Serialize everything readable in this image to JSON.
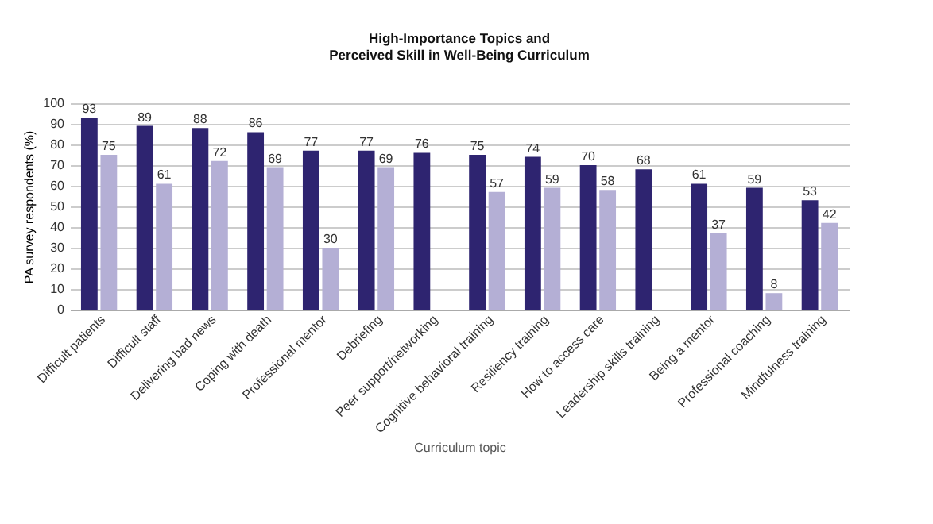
{
  "chart_data": {
    "type": "bar",
    "title": "High-Importance Topics and\nPerceived Skill in Well-Being Curriculum",
    "xlabel": "Curriculum topic",
    "ylabel": "PA survey respondents (%)",
    "categories": [
      "Difficult patients",
      "Difficult staff",
      "Delivering bad news",
      "Coping with death",
      "Professional mentor",
      "Debriefing",
      "Peer support/networking",
      "Cognitive behavioral training",
      "Resiliency training",
      "How to access care",
      "Leadership skills training",
      "Being a mentor",
      "Professional coaching",
      "Mindfulness training"
    ],
    "series": [
      {
        "color": "#2e2470",
        "values": [
          93,
          89,
          88,
          86,
          77,
          77,
          76,
          75,
          74,
          70,
          68,
          61,
          59,
          53
        ]
      },
      {
        "color": "#b4afd5",
        "values": [
          75,
          61,
          72,
          69,
          30,
          69,
          null,
          57,
          59,
          58,
          null,
          37,
          8,
          42
        ]
      }
    ],
    "ylim": [
      0,
      100
    ],
    "yticks": [
      0,
      10,
      20,
      30,
      40,
      50,
      60,
      70,
      80,
      90,
      100
    ],
    "grid": "y",
    "data_labels": true,
    "legend": false
  }
}
